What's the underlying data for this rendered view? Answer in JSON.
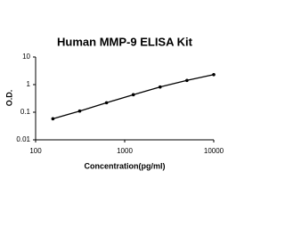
{
  "chart_data": {
    "type": "scatter",
    "title": "Human MMP-9 ELISA Kit",
    "x_label": "Concentration(pg/ml)",
    "y_label": "O.D.",
    "x_log": true,
    "y_log": true,
    "xlim": [
      100,
      10000
    ],
    "xticks": [
      100,
      1000,
      10000
    ],
    "ylim": [
      0.01,
      10
    ],
    "yticks": [
      0.01,
      0.1,
      1,
      10
    ],
    "series": [
      {
        "color": "#000000",
        "x": [
          156.25,
          312.5,
          625,
          1250,
          2500,
          5000,
          10000
        ],
        "values": [
          0.058,
          0.11,
          0.22,
          0.43,
          0.82,
          1.42,
          2.3
        ]
      }
    ]
  }
}
